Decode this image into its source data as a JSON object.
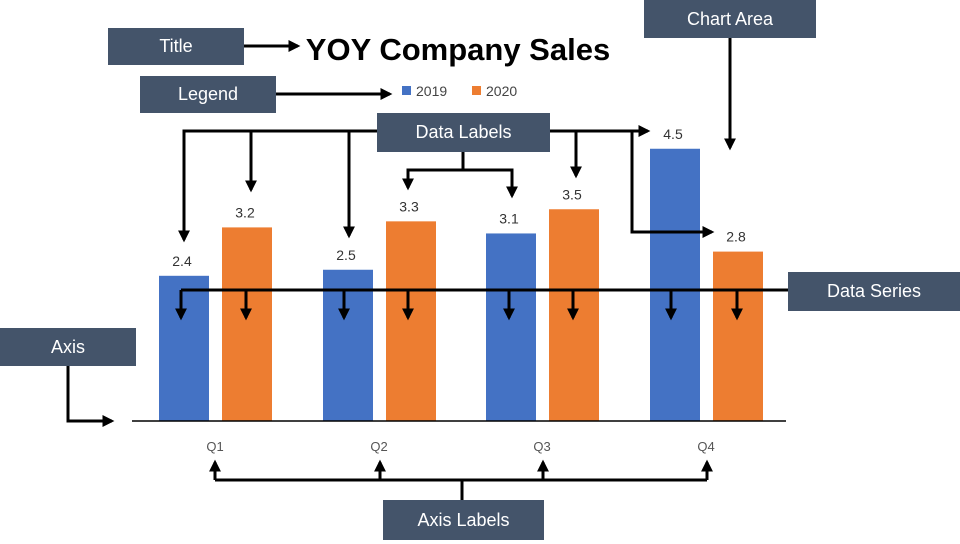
{
  "chart_data": {
    "type": "bar",
    "title": "YOY Company Sales",
    "categories": [
      "Q1",
      "Q2",
      "Q3",
      "Q4"
    ],
    "series": [
      {
        "name": "2019",
        "values": [
          2.4,
          2.5,
          3.1,
          4.5
        ]
      },
      {
        "name": "2020",
        "values": [
          3.2,
          3.3,
          3.5,
          2.8
        ]
      }
    ],
    "ylim": [
      0,
      5
    ],
    "grid": false,
    "legend": "top",
    "colors": {
      "2019": "#4472c4",
      "2020": "#ed7d31"
    }
  },
  "callouts": {
    "title": "Title",
    "legend": "Legend",
    "chart_area": "Chart Area",
    "data_labels": "Data Labels",
    "data_series": "Data Series",
    "axis": "Axis",
    "axis_labels": "Axis Labels"
  },
  "colors": {
    "callout_bg": "#44546a",
    "callout_text": "#ffffff",
    "arrow": "#000000"
  }
}
